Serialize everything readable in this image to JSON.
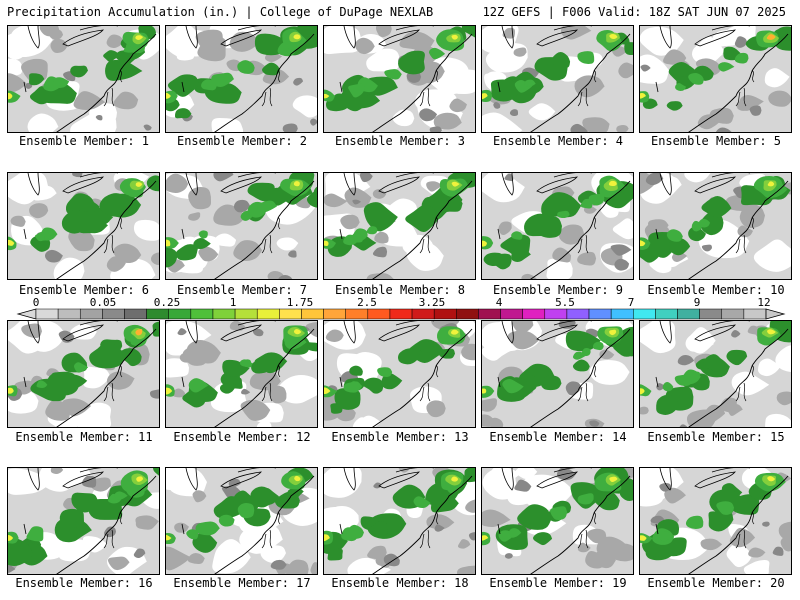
{
  "header": {
    "title": "Precipitation Accumulation (in.) | College of DuPage NEXLAB",
    "run": "12Z GEFS | F006 Valid: 18Z SAT JUN 07 2025"
  },
  "panels": [
    {
      "caption": "Ensemble Member: 1"
    },
    {
      "caption": "Ensemble Member: 2"
    },
    {
      "caption": "Ensemble Member: 3"
    },
    {
      "caption": "Ensemble Member: 4"
    },
    {
      "caption": "Ensemble Member: 5"
    },
    {
      "caption": "Ensemble Member: 6"
    },
    {
      "caption": "Ensemble Member: 7"
    },
    {
      "caption": "Ensemble Member: 8"
    },
    {
      "caption": "Ensemble Member: 9"
    },
    {
      "caption": "Ensemble Member: 10"
    },
    {
      "caption": "Ensemble Member: 11"
    },
    {
      "caption": "Ensemble Member: 12"
    },
    {
      "caption": "Ensemble Member: 13"
    },
    {
      "caption": "Ensemble Member: 14"
    },
    {
      "caption": "Ensemble Member: 15"
    },
    {
      "caption": "Ensemble Member: 16"
    },
    {
      "caption": "Ensemble Member: 17"
    },
    {
      "caption": "Ensemble Member: 18"
    },
    {
      "caption": "Ensemble Member: 19"
    },
    {
      "caption": "Ensemble Member: 20"
    }
  ],
  "legend": {
    "tick_labels": [
      "0",
      "0.05",
      "0.25",
      "1",
      "1.75",
      "2.5",
      "3.25",
      "4",
      "5.5",
      "7",
      "9",
      "12"
    ],
    "colors": [
      "#d9d9d9",
      "#bdbdbd",
      "#a3a3a3",
      "#8a8a8a",
      "#6e6e6e",
      "#2e8b2e",
      "#38a838",
      "#4fc03a",
      "#7fd13a",
      "#b5e03a",
      "#e8f03a",
      "#ffe14d",
      "#ffc53a",
      "#ffa53a",
      "#ff7f2a",
      "#ff5a1f",
      "#f02a1a",
      "#d01a1a",
      "#b01010",
      "#901010",
      "#a01050",
      "#c01890",
      "#e020c0",
      "#c040f0",
      "#9060ff",
      "#6090ff",
      "#40c0ff",
      "#40e8f0",
      "#40d0c0",
      "#40b0a0",
      "#8a8a8a",
      "#a8a8a8",
      "#c8c8c8"
    ]
  },
  "map_colors": {
    "light_gray": "#d6d6d6",
    "mid_gray": "#a8a8a8",
    "dark_gray": "#888888",
    "dark_green": "#2c8f2c",
    "green": "#3fae3f",
    "light_green": "#84cf3c",
    "yellow": "#f0f23c",
    "orange": "#ffb030"
  },
  "icons": {
    "arrow_left": "legend-left-arrow-icon",
    "arrow_right": "legend-right-arrow-icon"
  }
}
